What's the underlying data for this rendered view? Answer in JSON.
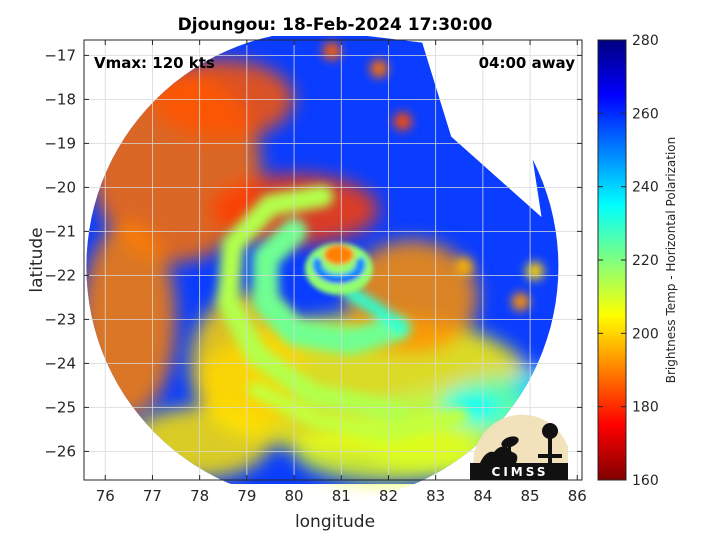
{
  "chart_data": {
    "type": "heatmap",
    "title": "Djoungou: 18-Feb-2024 17:30:00",
    "xlabel": "longitude",
    "ylabel": "latitude",
    "xlim": [
      75.55,
      86.1
    ],
    "ylim": [
      -26.65,
      -16.65
    ],
    "x_ticks": [
      76,
      77,
      78,
      79,
      80,
      81,
      82,
      83,
      84,
      85,
      86
    ],
    "y_ticks": [
      -17,
      -18,
      -19,
      -20,
      -21,
      -22,
      -23,
      -24,
      -25,
      -26
    ],
    "grid": true,
    "annotations": {
      "vmax": "Vmax: 120 kts",
      "time_offset": "04:00 away"
    },
    "colorbar": {
      "label": "Brightness Temp - Horizontal Polarization",
      "min": 160,
      "max": 280,
      "ticks": [
        160,
        180,
        200,
        220,
        240,
        260,
        280
      ],
      "colormap": "jet"
    },
    "swath": {
      "center": [
        80.6,
        -21.8
      ],
      "radius_deg": 5.0,
      "right_edge_lon": 82.8
    },
    "features": {
      "eye_center": [
        80.95,
        -21.85
      ],
      "eyewall_min_temp": 175,
      "background_temp": 262,
      "spiral_band_temp": 232,
      "inner_core_temp": 222
    },
    "logo_text": "CIMSS"
  }
}
